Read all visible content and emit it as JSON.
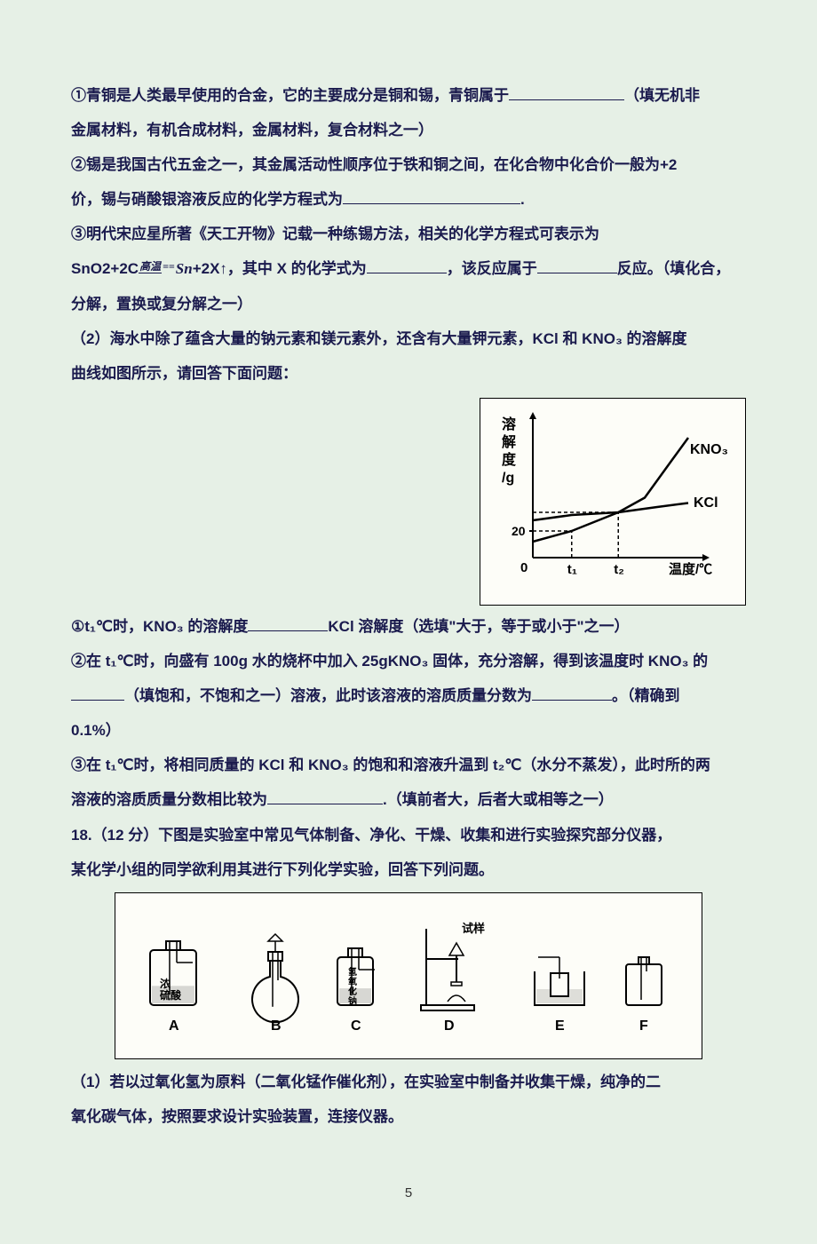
{
  "doc": {
    "bg_color": "#e6f0e6",
    "text_color": "#1a1a4d",
    "page_number": "5"
  },
  "lines": {
    "l1a": "①青铜是人类最早使用的合金，它的主要成分是铜和锡，青铜属于",
    "l1b": "（填无机非",
    "l2": "金属材料，有机合成材料，金属材料，复合材料之一）",
    "l3a": "②锡是我国古代五金之一，其金属活动性顺序位于铁和铜之间，在化合物中化合价一般为+2",
    "l3b": "价，锡与硝酸银溶液反应的化学方程式为",
    "l3c": ".",
    "l4": "③明代宋应星所著《天工开物》记载一种练锡方法，相关的化学方程式可表示为",
    "eq_a": "SnO2+2C",
    "eq_top": "高温",
    "eq_bot": "==",
    "eq_b": "Sn",
    "eq_c": "+2X↑，其中 X 的化学式为",
    "eq_d": "，该反应属于",
    "eq_e": "反应。（填化合，",
    "l6": "分解，置换或复分解之一）",
    "l7": "（2）海水中除了蕴含大量的钠元素和镁元素外，还含有大量钾元素，KCl 和 KNO₃ 的溶解度",
    "l8": "曲线如图所示，请回答下面问题：",
    "q1a": "①t₁℃时，KNO₃ 的溶解度",
    "q1b": "KCl 溶解度（选填\"大于，等于或小于\"之一）",
    "q2a": "②在 t₁℃时，向盛有 100g 水的烧杯中加入 25gKNO₃ 固体，充分溶解，得到该温度时 KNO₃ 的",
    "q2b": "（填饱和，不饱和之一）溶液，此时该溶液的溶质质量分数为",
    "q2c": "。（精确到",
    "q2d": "0.1%）",
    "q3a": "③在 t₁℃时，将相同质量的 KCl 和 KNO₃ 的饱和和溶液升温到 t₂℃（水分不蒸发），此时所的两",
    "q3b": "溶液的溶质质量分数相比较为",
    "q3c": ".（填前者大，后者大或相等之一）",
    "q18a": "18.（12 分）下图是实验室中常见气体制备、净化、干燥、收集和进行实验探究部分仪器，",
    "q18b": "某化学小组的同学欲利用其进行下列化学实验，回答下列问题。",
    "r1a": "（1）若以过氧化氢为原料（二氧化锰作催化剂），在实验室中制备并收集干燥，纯净的二",
    "r1b": "氧化碳气体，按照要求设计实验装置，连接仪器。"
  },
  "chart": {
    "type": "line",
    "y_label_lines": [
      "溶",
      "解",
      "度",
      "/g"
    ],
    "x_label": "温度/℃",
    "series": [
      {
        "name": "KNO3",
        "label": "KNO₃",
        "points": [
          [
            0,
            12
          ],
          [
            25,
            20
          ],
          [
            55,
            34
          ],
          [
            72,
            45
          ],
          [
            90,
            74
          ],
          [
            100,
            90
          ]
        ],
        "color": "#000000"
      },
      {
        "name": "KCl",
        "label": "KCl",
        "points": [
          [
            0,
            28
          ],
          [
            25,
            32
          ],
          [
            55,
            34
          ],
          [
            80,
            38
          ],
          [
            100,
            41
          ]
        ],
        "color": "#000000"
      }
    ],
    "y_tick": {
      "value": 20,
      "label": "20"
    },
    "x_ticks": [
      {
        "value": 25,
        "label": "t₁"
      },
      {
        "value": 55,
        "label": "t₂"
      }
    ],
    "intersection_y": 34,
    "dash_color": "#000000",
    "bg": "#fdfdf8",
    "axis_color": "#000000",
    "grid_on": false
  },
  "apparatus": {
    "bg": "#fdfdf8",
    "stroke": "#000000",
    "items": [
      {
        "id": "A",
        "label": "A",
        "caption": "浓硫酸"
      },
      {
        "id": "B",
        "label": "B"
      },
      {
        "id": "C",
        "label": "C",
        "caption_lines": [
          "氢",
          "氧",
          "化",
          "钠"
        ]
      },
      {
        "id": "D",
        "label": "D",
        "caption": "试样"
      },
      {
        "id": "E",
        "label": "E"
      },
      {
        "id": "F",
        "label": "F"
      }
    ]
  }
}
